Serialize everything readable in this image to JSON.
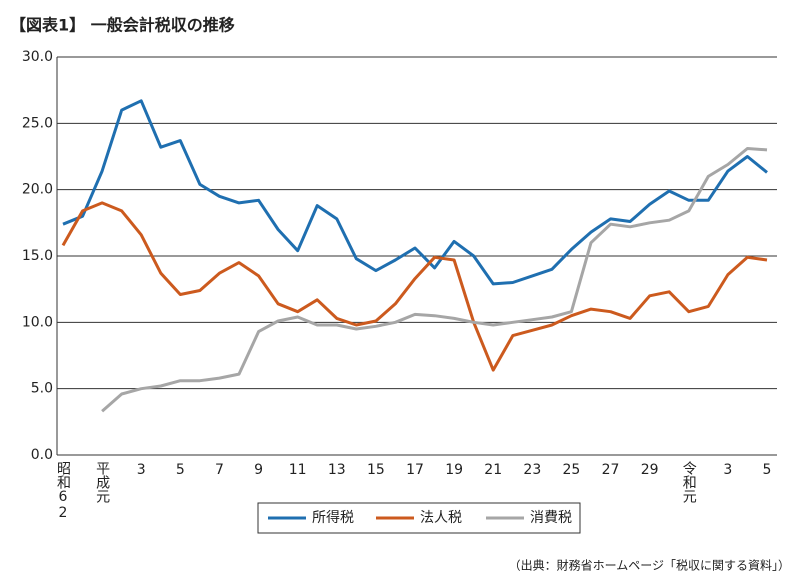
{
  "chart_data": {
    "type": "line",
    "title": "【図表1】 一般会計税収の推移",
    "note": "（出典：財務省ホームページ「税収に関する資料」）",
    "categories": [
      "昭和62",
      null,
      "平成元",
      null,
      "3",
      null,
      "5",
      null,
      "7",
      null,
      "9",
      null,
      "11",
      null,
      "13",
      null,
      "15",
      null,
      "17",
      null,
      "19",
      null,
      "21",
      null,
      "23",
      null,
      "25",
      null,
      "27",
      null,
      "29",
      null,
      "令和元",
      null,
      "3",
      null,
      "5"
    ],
    "series": [
      {
        "name": "所得税",
        "color": "#1f6fb0",
        "values": [
          17.4,
          18.0,
          21.4,
          26.0,
          26.7,
          23.2,
          23.7,
          20.4,
          19.5,
          19.0,
          19.2,
          17.0,
          15.4,
          18.8,
          17.8,
          14.8,
          13.9,
          14.7,
          15.6,
          14.1,
          16.1,
          15.0,
          12.9,
          13.0,
          13.5,
          14.0,
          15.5,
          16.8,
          17.8,
          17.6,
          18.9,
          19.9,
          19.2,
          19.2,
          21.4,
          22.5,
          21.3
        ]
      },
      {
        "name": "法人税",
        "color": "#cc5a1e",
        "values": [
          15.8,
          18.4,
          19.0,
          18.4,
          16.6,
          13.7,
          12.1,
          12.4,
          13.7,
          14.5,
          13.5,
          11.4,
          10.8,
          11.7,
          10.3,
          9.8,
          10.1,
          11.4,
          13.3,
          14.9,
          14.7,
          10.0,
          6.4,
          9.0,
          9.4,
          9.8,
          10.5,
          11.0,
          10.8,
          10.3,
          12.0,
          12.3,
          10.8,
          11.2,
          13.6,
          14.9,
          14.7
        ]
      },
      {
        "name": "消費税",
        "color": "#a6a6a6",
        "values": [
          null,
          null,
          3.3,
          4.6,
          5.0,
          5.2,
          5.6,
          5.6,
          5.8,
          6.1,
          9.3,
          10.1,
          10.4,
          9.8,
          9.8,
          9.5,
          9.7,
          10.0,
          10.6,
          10.5,
          10.3,
          10.0,
          9.8,
          10.0,
          10.2,
          10.4,
          10.8,
          16.0,
          17.4,
          17.2,
          17.5,
          17.7,
          18.4,
          21.0,
          21.9,
          23.1,
          23.0
        ]
      }
    ],
    "ylim": [
      0,
      30
    ],
    "yticks": [
      {
        "value": 0,
        "label": "0.0"
      },
      {
        "value": 5,
        "label": "5.0"
      },
      {
        "value": 10,
        "label": "10.0"
      },
      {
        "value": 15,
        "label": "15.0"
      },
      {
        "value": 20,
        "label": "20.0"
      },
      {
        "value": 25,
        "label": "25.0"
      },
      {
        "value": 30,
        "label": "30.0"
      }
    ],
    "grid": true
  }
}
